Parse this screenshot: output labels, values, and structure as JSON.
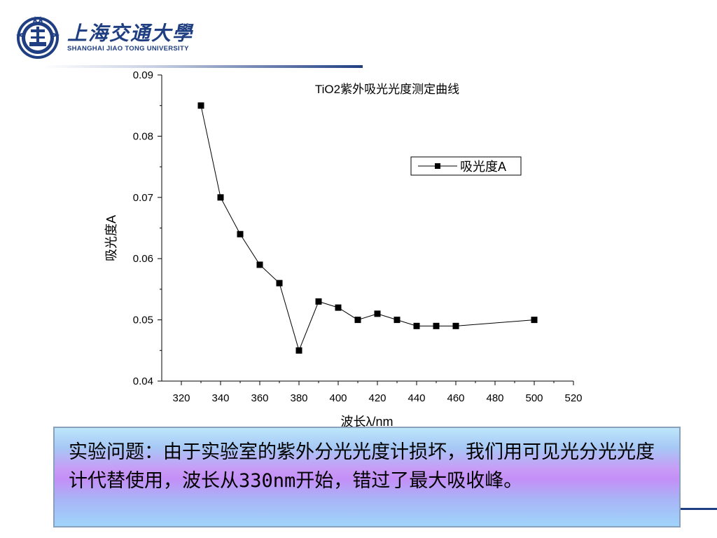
{
  "header": {
    "university_cn": "上海交通大學",
    "university_en": "SHANGHAI  JIAO TONG  UNIVERSITY",
    "logo_icon": "university-seal-icon",
    "brand_color": "#1f3f82"
  },
  "chart_data": {
    "type": "line",
    "title": "TiO2紫外吸光光度测定曲线",
    "xlabel": "波长λ/nm",
    "ylabel": "吸光度A",
    "xlim": [
      310,
      520
    ],
    "ylim": [
      0.04,
      0.09
    ],
    "x_ticks": [
      "320",
      "340",
      "360",
      "380",
      "400",
      "420",
      "440",
      "460",
      "480",
      "500",
      "520"
    ],
    "y_ticks": [
      "0.04",
      "0.05",
      "0.06",
      "0.07",
      "0.08",
      "0.09"
    ],
    "legend": "top-right",
    "marker": "square",
    "series": [
      {
        "name": "吸光度A",
        "x": [
          330,
          340,
          350,
          360,
          370,
          380,
          390,
          400,
          410,
          420,
          430,
          440,
          450,
          460,
          500
        ],
        "y": [
          0.085,
          0.07,
          0.064,
          0.059,
          0.056,
          0.045,
          0.053,
          0.052,
          0.05,
          0.051,
          0.05,
          0.049,
          0.049,
          0.049,
          0.05
        ]
      }
    ]
  },
  "note": {
    "text": "实验问题：由于实验室的紫外分光光度计损坏，我们用可见光分光光度计代替使用，波长从330nm开始，错过了最大吸收峰。",
    "colors": [
      "#bde6fb",
      "#c48ff7",
      "#9fd5fb"
    ]
  }
}
